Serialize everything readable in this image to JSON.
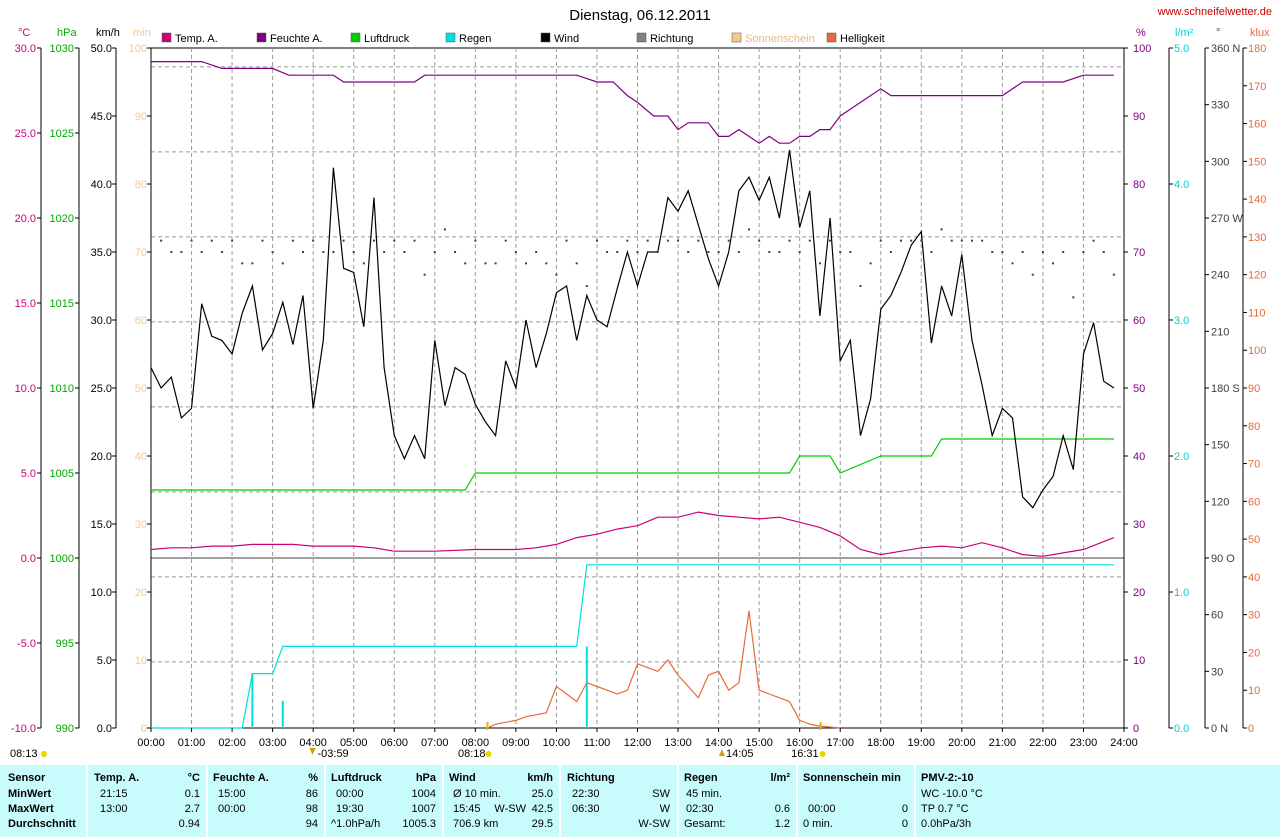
{
  "header": {
    "title": "Dienstag, 06.12.2011",
    "site": "www.schneifelwetter.de",
    "legend": [
      {
        "label": "Temp. A.",
        "color": "#cc0077"
      },
      {
        "label": "Feuchte A.",
        "color": "#800080"
      },
      {
        "label": "Luftdruck",
        "color": "#00cc00"
      },
      {
        "label": "Regen",
        "color": "#00e0e0"
      },
      {
        "label": "Wind",
        "color": "#000000"
      },
      {
        "label": "Richtung",
        "color": "#808080"
      },
      {
        "label": "Sonnenschein",
        "color": "#f5c890"
      },
      {
        "label": "Helligkeit",
        "color": "#e86a38"
      }
    ]
  },
  "markers": {
    "day_start": "08:13",
    "moon_icon": "moon-icon",
    "moonset": "03:59",
    "sunrise": "08:18",
    "moonrise": "14:05",
    "sunset": "16:31"
  },
  "chart_data": {
    "type": "line",
    "x_ticks": [
      "00:00",
      "01:00",
      "02:00",
      "03:00",
      "04:00",
      "05:00",
      "06:00",
      "07:00",
      "08:00",
      "09:00",
      "10:00",
      "11:00",
      "12:00",
      "13:00",
      "14:00",
      "15:00",
      "16:00",
      "17:00",
      "18:00",
      "19:00",
      "20:00",
      "21:00",
      "22:00",
      "23:00",
      "24:00"
    ],
    "xlim": [
      0,
      24
    ],
    "grid": true,
    "axes": {
      "temp": {
        "unit": "°C",
        "ylim": [
          -10,
          30
        ],
        "ticks": [
          "30.0",
          "25.0",
          "20.0",
          "15.0",
          "10.0",
          "5.0",
          "0.0",
          "-5.0",
          "-10.0"
        ],
        "color": "#cc0077"
      },
      "pressure": {
        "unit": "hPa",
        "ylim": [
          990,
          1030
        ],
        "ticks": [
          "1030",
          "1025",
          "1020",
          "1015",
          "1010",
          "1005",
          "1000",
          "995",
          "990"
        ],
        "color": "#00aa00"
      },
      "wind": {
        "unit": "km/h",
        "ylim": [
          0,
          50
        ],
        "ticks": [
          "50.0",
          "45.0",
          "40.0",
          "35.0",
          "30.0",
          "25.0",
          "20.0",
          "15.0",
          "10.0",
          "5.0",
          "0.0"
        ],
        "color": "#000000"
      },
      "sunshine": {
        "unit": "min",
        "ylim": [
          0,
          100
        ],
        "ticks": [
          "100",
          "90",
          "80",
          "70",
          "60",
          "50",
          "40",
          "30",
          "20",
          "10",
          "0"
        ],
        "color": "#f5c890"
      },
      "humidity": {
        "unit": "%",
        "ylim": [
          0,
          100
        ],
        "ticks": [
          "100",
          "90",
          "80",
          "70",
          "60",
          "50",
          "40",
          "30",
          "20",
          "10",
          "0"
        ],
        "color": "#800080"
      },
      "rain": {
        "unit": "l/m²",
        "ylim": [
          0,
          5
        ],
        "ticks": [
          "5.0",
          "4.0",
          "3.0",
          "2.0",
          "1.0",
          "0.0"
        ],
        "color": "#00d0d0"
      },
      "direction": {
        "unit": "°",
        "ylim": [
          0,
          360
        ],
        "ticks": [
          "360 N",
          "330",
          "300",
          "270 W",
          "240",
          "210",
          "180 S",
          "150",
          "120",
          "90 O",
          "60",
          "30",
          "0 N"
        ],
        "color": "#404040"
      },
      "light": {
        "unit": "klux",
        "ylim": [
          0,
          180
        ],
        "ticks": [
          "180",
          "170",
          "160",
          "150",
          "140",
          "130",
          "120",
          "110",
          "100",
          "90",
          "80",
          "70",
          "60",
          "50",
          "40",
          "30",
          "20",
          "10",
          "0"
        ],
        "color": "#e86a38"
      }
    },
    "series": [
      {
        "name": "Feuchte A.",
        "axis": "humidity",
        "color": "#800080",
        "x": [
          0,
          1.25,
          1.75,
          3,
          3.4,
          4.5,
          4.75,
          6.5,
          6.75,
          10.5,
          11,
          11.4,
          11.75,
          12,
          12.4,
          12.75,
          13,
          13.25,
          13.75,
          14,
          14.25,
          14.5,
          14.75,
          15,
          15.25,
          15.5,
          15.75,
          16,
          16.25,
          16.5,
          16.75,
          17,
          17.5,
          18,
          18.25,
          19,
          20,
          21,
          21.5,
          22,
          22.5,
          23,
          23.75
        ],
        "y": [
          98,
          98,
          97,
          97,
          96,
          96,
          95,
          95,
          96,
          96,
          95,
          95,
          93,
          92,
          90,
          90,
          88,
          89,
          89,
          87,
          87,
          88,
          87,
          86,
          87,
          86,
          86,
          87,
          87,
          88,
          88,
          90,
          92,
          94,
          93,
          93,
          93,
          93,
          95,
          95,
          95,
          96,
          96
        ]
      },
      {
        "name": "Temp. A.",
        "axis": "temp",
        "color": "#cc0077",
        "x": [
          0,
          0.5,
          1,
          1.5,
          2,
          2.5,
          3,
          3.5,
          4,
          5,
          5.5,
          6,
          7,
          8,
          8.5,
          9,
          9.5,
          10,
          10.5,
          11,
          11.5,
          12,
          12.5,
          13,
          13.5,
          14,
          14.5,
          15,
          15.5,
          16,
          16.5,
          17,
          17.5,
          18,
          18.5,
          19,
          19.5,
          20,
          20.5,
          21,
          21.5,
          22,
          22.5,
          23,
          23.75
        ],
        "y": [
          0.5,
          0.6,
          0.6,
          0.7,
          0.7,
          0.8,
          0.8,
          0.8,
          0.7,
          0.7,
          0.6,
          0.4,
          0.4,
          0.5,
          0.5,
          0.5,
          0.6,
          0.8,
          1.2,
          1.4,
          1.7,
          1.9,
          2.4,
          2.4,
          2.7,
          2.5,
          2.4,
          2.3,
          2.4,
          2.1,
          1.8,
          1.3,
          0.5,
          0.2,
          0.4,
          0.6,
          0.7,
          0.6,
          0.9,
          0.6,
          0.2,
          0.1,
          0.3,
          0.5,
          1.2
        ]
      },
      {
        "name": "Luftdruck",
        "axis": "pressure",
        "color": "#00cc00",
        "x": [
          0,
          7.75,
          8,
          15.75,
          16,
          16.75,
          17,
          18,
          18.5,
          19.25,
          19.5,
          23.75
        ],
        "y": [
          1004,
          1004,
          1005,
          1005,
          1006,
          1006,
          1005,
          1006,
          1006,
          1006,
          1007,
          1007
        ]
      },
      {
        "name": "Regen",
        "axis": "rain",
        "color": "#00e0e0",
        "cumulative": true,
        "x": [
          0,
          2.25,
          2.5,
          2.75,
          3,
          3.25,
          10.5,
          10.75,
          23.75
        ],
        "y": [
          0,
          0,
          0.4,
          0.4,
          0.4,
          0.6,
          0.6,
          1.2,
          1.2
        ]
      },
      {
        "name": "Wind",
        "axis": "wind",
        "color": "#000000",
        "x": [
          0,
          0.25,
          0.5,
          0.75,
          1,
          1.25,
          1.5,
          1.75,
          2,
          2.25,
          2.5,
          2.75,
          3,
          3.25,
          3.5,
          3.75,
          4,
          4.25,
          4.5,
          4.75,
          5,
          5.25,
          5.5,
          5.75,
          6,
          6.25,
          6.5,
          6.75,
          7,
          7.25,
          7.5,
          7.75,
          8,
          8.25,
          8.5,
          8.75,
          9,
          9.25,
          9.5,
          9.75,
          10,
          10.25,
          10.5,
          10.75,
          11,
          11.25,
          11.5,
          11.75,
          12,
          12.25,
          12.5,
          12.75,
          13,
          13.25,
          13.5,
          13.75,
          14,
          14.25,
          14.5,
          14.75,
          15,
          15.25,
          15.5,
          15.75,
          16,
          16.25,
          16.5,
          16.75,
          17,
          17.25,
          17.5,
          17.75,
          18,
          18.25,
          18.5,
          18.75,
          19,
          19.25,
          19.5,
          19.75,
          20,
          20.25,
          20.5,
          20.75,
          21,
          21.25,
          21.5,
          21.75,
          22,
          22.25,
          22.5,
          22.75,
          23,
          23.25,
          23.5,
          23.75
        ],
        "y": [
          26.5,
          25.0,
          25.8,
          22.8,
          23.5,
          31.2,
          28.8,
          28.5,
          27.5,
          30.5,
          32.5,
          27.8,
          29.0,
          31.3,
          28.2,
          31.8,
          23.5,
          28.5,
          41.2,
          33.8,
          33.5,
          29.5,
          39.0,
          26.5,
          21.5,
          19.8,
          21.5,
          19.8,
          28.5,
          23.7,
          26.5,
          26.0,
          23.8,
          22.5,
          21.5,
          27.0,
          25.0,
          30.0,
          26.5,
          29.0,
          32.0,
          32.5,
          28.5,
          31.8,
          30.0,
          29.5,
          32.3,
          35.0,
          32.5,
          35.0,
          35.0,
          39.0,
          38.0,
          39.5,
          37.0,
          34.5,
          32.5,
          35.0,
          39.5,
          40.5,
          38.8,
          40.5,
          37.5,
          42.5,
          36.8,
          39.5,
          30.3,
          37.5,
          27.0,
          28.5,
          21.5,
          24.2,
          30.8,
          31.8,
          33.5,
          35.5,
          36.5,
          28.3,
          32.5,
          30.3,
          34.8,
          28.5,
          25.2,
          21.5,
          23.5,
          22.8,
          17.0,
          16.2,
          17.5,
          18.5,
          21.5,
          19.0,
          27.5,
          29.8,
          25.5,
          25.0
        ]
      },
      {
        "name": "Richtung",
        "axis": "direction",
        "color": "#404040",
        "style": "dots",
        "x": [
          0.25,
          0.5,
          0.75,
          1,
          1.25,
          1.5,
          1.75,
          2,
          2.25,
          2.5,
          2.75,
          3,
          3.25,
          3.5,
          3.75,
          4,
          4.25,
          4.5,
          4.75,
          5,
          5.25,
          5.5,
          5.75,
          6,
          6.25,
          6.5,
          6.75,
          7,
          7.25,
          7.5,
          7.75,
          8,
          8.25,
          8.5,
          8.75,
          9,
          9.25,
          9.5,
          9.75,
          10,
          10.25,
          10.5,
          10.75,
          11,
          11.25,
          11.5,
          11.75,
          12,
          12.25,
          12.5,
          12.75,
          13,
          13.25,
          13.5,
          13.75,
          14,
          14.25,
          14.5,
          14.75,
          15,
          15.25,
          15.5,
          15.75,
          16,
          16.25,
          16.5,
          16.75,
          17,
          17.25,
          17.5,
          17.75,
          18,
          18.25,
          18.5,
          18.75,
          19,
          19.25,
          19.5,
          19.75,
          20,
          20.25,
          20.5,
          20.75,
          21,
          21.25,
          21.5,
          21.75,
          22,
          22.25,
          22.5,
          22.75,
          23,
          23.25,
          23.5,
          23.75
        ],
        "y": [
          258,
          252,
          252,
          258,
          252,
          258,
          252,
          258,
          246,
          246,
          258,
          252,
          246,
          258,
          252,
          258,
          252,
          252,
          258,
          252,
          246,
          258,
          252,
          258,
          252,
          258,
          240,
          252,
          264,
          252,
          246,
          258,
          246,
          246,
          258,
          252,
          246,
          252,
          246,
          240,
          258,
          246,
          234,
          258,
          252,
          252,
          258,
          252,
          258,
          252,
          258,
          258,
          252,
          258,
          252,
          252,
          258,
          252,
          264,
          258,
          252,
          252,
          258,
          252,
          258,
          246,
          258,
          252,
          252,
          234,
          246,
          258,
          252,
          258,
          258,
          258,
          252,
          264,
          258,
          258,
          258,
          258,
          252,
          252,
          246,
          252,
          240,
          252,
          246,
          252,
          228,
          252,
          258,
          252,
          240
        ]
      },
      {
        "name": "Helligkeit",
        "axis": "light",
        "color": "#e86a38",
        "x": [
          8.3,
          8.5,
          9,
          9.25,
          9.5,
          9.75,
          10,
          10.25,
          10.5,
          10.75,
          11,
          11.25,
          11.5,
          11.75,
          12,
          12.25,
          12.5,
          12.75,
          13,
          13.25,
          13.5,
          13.75,
          14,
          14.25,
          14.5,
          14.75,
          15,
          15.25,
          15.5,
          15.75,
          16,
          16.25,
          16.5,
          17
        ],
        "y": [
          0,
          1,
          2,
          3,
          3.5,
          4,
          11,
          9,
          7,
          12,
          11,
          10,
          9,
          10,
          17,
          16,
          15,
          18,
          14,
          11,
          8,
          14,
          15,
          10,
          12,
          31,
          10,
          9,
          8,
          7,
          2,
          1,
          0.5,
          0
        ]
      }
    ]
  },
  "stats": {
    "headers": {
      "sensor": "Sensor",
      "temp": "Temp. A.",
      "temp_unit": "°C",
      "hum": "Feuchte A.",
      "hum_unit": "%",
      "press": "Luftdruck",
      "press_unit": "hPa",
      "wind": "Wind",
      "wind_unit": "km/h",
      "dir": "Richtung",
      "rain": "Regen",
      "rain_unit": "l/m²",
      "sun": "Sonnenschein min",
      "pmv": "PMV-2:-10"
    },
    "rows": [
      {
        "label": "MinWert",
        "temp_time": "21:15",
        "temp_val": "0.1",
        "hum_time": "15:00",
        "hum_val": "86",
        "press_time": "00:00",
        "press_val": "1004",
        "wind_time": "Ø 10 min.",
        "wind_dir": "",
        "wind_val": "25.0",
        "dir_time": "22:30",
        "dir_val": "SW",
        "rain_time": "45 min.",
        "rain_val": "",
        "sun_time": "",
        "sun_val": "",
        "pmv": "WC -10.0 °C"
      },
      {
        "label": "MaxWert",
        "temp_time": "13:00",
        "temp_val": "2.7",
        "hum_time": "00:00",
        "hum_val": "98",
        "press_time": "19:30",
        "press_val": "1007",
        "wind_time": "15:45",
        "wind_dir": "W-SW",
        "wind_val": "42.5",
        "dir_time": "06:30",
        "dir_val": "W",
        "rain_time": "02:30",
        "rain_val": "0.6",
        "sun_time": "00:00",
        "sun_val": "0",
        "pmv": "TP 0.7 °C"
      },
      {
        "label": "Durchschnitt",
        "temp_time": "",
        "temp_val": "0.94",
        "hum_time": "",
        "hum_val": "94",
        "press_time": "^1.0hPa/h",
        "press_val": "1005.3",
        "wind_time": "706.9 km",
        "wind_dir": "",
        "wind_val": "29.5",
        "dir_time": "",
        "dir_val": "W-SW",
        "rain_time": "Gesamt:",
        "rain_val": "1.2",
        "sun_time": "0 min.",
        "sun_val": "0",
        "pmv": "0.0hPa/3h"
      }
    ]
  }
}
